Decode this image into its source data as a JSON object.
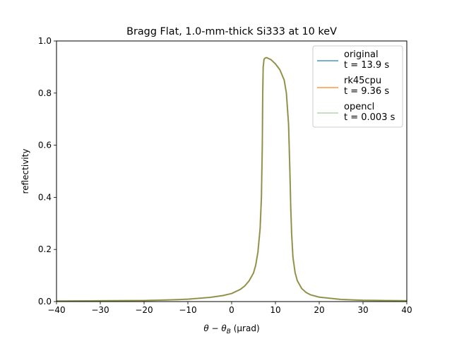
{
  "chart_data": {
    "type": "line",
    "title": "Bragg Flat, 1.0-mm-thick Si333 at 10 keV",
    "xlabel_prefix": "θ − θ",
    "xlabel_subscript": "B",
    "xlabel_suffix": " (µrad)",
    "ylabel": "reflectivity",
    "xlim": [
      -40,
      40
    ],
    "ylim": [
      0.0,
      1.0
    ],
    "xticks": [
      -40,
      -30,
      -20,
      -10,
      0,
      10,
      20,
      30,
      40
    ],
    "xtick_labels": [
      "−40",
      "−30",
      "−20",
      "−10",
      "0",
      "10",
      "20",
      "30",
      "40"
    ],
    "yticks": [
      0.0,
      0.2,
      0.4,
      0.6,
      0.8,
      1.0
    ],
    "ytick_labels": [
      "0.0",
      "0.2",
      "0.4",
      "0.6",
      "0.8",
      "1.0"
    ],
    "grid": false,
    "legend_position": "top-right",
    "series": [
      {
        "name": "original",
        "time_label": "t = 13.9 s",
        "color": "#1f77b4",
        "alpha": 0.6,
        "linewidth": 2.0
      },
      {
        "name": "rk45cpu",
        "time_label": "t = 9.36 s",
        "color": "#ff7f0e",
        "alpha": 0.6,
        "linewidth": 2.0
      },
      {
        "name": "opencl",
        "time_label": "t = 0.003 s",
        "color": "#2ca02c",
        "alpha": 0.6,
        "linewidth": 1.0
      }
    ],
    "x": [
      -40,
      -30,
      -20,
      -15,
      -10,
      -5,
      -2,
      0,
      2,
      3,
      4,
      5,
      5.5,
      6,
      6.5,
      6.8,
      7.0,
      7.1,
      7.2,
      7.4,
      7.7,
      8.0,
      9.0,
      10.0,
      11.0,
      12.0,
      12.5,
      13.0,
      13.3,
      13.5,
      13.7,
      14.0,
      14.5,
      15.0,
      16.0,
      17.0,
      18.0,
      20.0,
      25.0,
      30.0,
      40.0
    ],
    "y": [
      0.002,
      0.003,
      0.004,
      0.006,
      0.009,
      0.016,
      0.023,
      0.031,
      0.047,
      0.06,
      0.08,
      0.11,
      0.14,
      0.19,
      0.28,
      0.4,
      0.6,
      0.8,
      0.9,
      0.93,
      0.935,
      0.936,
      0.928,
      0.912,
      0.89,
      0.85,
      0.8,
      0.68,
      0.5,
      0.36,
      0.26,
      0.17,
      0.11,
      0.08,
      0.05,
      0.035,
      0.026,
      0.017,
      0.008,
      0.005,
      0.003
    ]
  }
}
